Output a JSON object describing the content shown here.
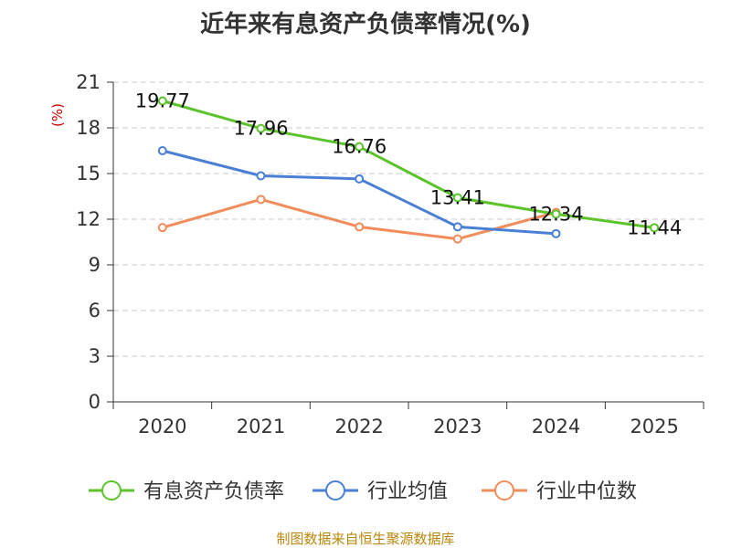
{
  "chart_data": {
    "type": "line",
    "title": "近年来有息资产负债率情况(%)",
    "ylabel": "(%)",
    "xlabel": "",
    "categories": [
      "2020",
      "2021",
      "2022",
      "2023",
      "2024",
      "2025"
    ],
    "ylim": [
      0,
      21
    ],
    "yticks": [
      0,
      3,
      6,
      9,
      12,
      15,
      18,
      21
    ],
    "grid": true,
    "legend_position": "bottom",
    "series": [
      {
        "name": "有息资产负债率",
        "color": "#5cc42b",
        "values": [
          19.77,
          17.96,
          16.76,
          13.41,
          12.34,
          11.44
        ],
        "labels": [
          "19.77",
          "17.96",
          "16.76",
          "13.41",
          "12.34",
          "11.44"
        ]
      },
      {
        "name": "行业均值",
        "color": "#4a7fd6",
        "values": [
          16.5,
          14.85,
          14.65,
          11.5,
          11.05,
          null
        ]
      },
      {
        "name": "行业中位数",
        "color": "#f28c5a",
        "values": [
          11.45,
          13.3,
          11.5,
          10.7,
          12.45,
          null
        ]
      }
    ]
  },
  "source": "制图数据来自恒生聚源数据库"
}
